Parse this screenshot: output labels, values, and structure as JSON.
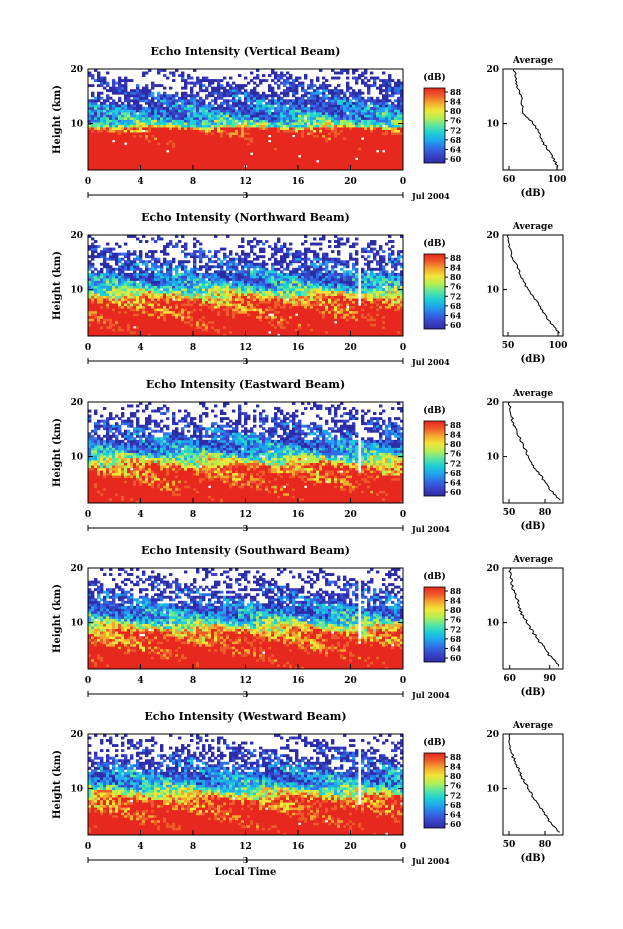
{
  "figure": {
    "bottom_label": "Local Time",
    "date_label": "Jul 2004",
    "day_marker": "3",
    "cbar_unit": "(dB)",
    "avg_title": "Average",
    "avg_xlabel": "(dB)"
  },
  "colorbar": {
    "ticks": [
      "60",
      "64",
      "68",
      "72",
      "76",
      "80",
      "84",
      "88"
    ],
    "colors": [
      "#2c2ca6",
      "#3a43c8",
      "#2f6ee6",
      "#1fa6ee",
      "#1fd0d4",
      "#5ce6a0",
      "#b6ee52",
      "#f2e63a",
      "#f4a92e",
      "#ee5a2a",
      "#e6281e"
    ]
  },
  "chart_data": [
    {
      "type": "heatmap",
      "title": "Echo Intensity (Vertical Beam)",
      "xlabel": "",
      "ylabel": "Height (km)",
      "x_ticks": [
        "0",
        "4",
        "8",
        "12",
        "16",
        "20",
        "0"
      ],
      "y_ticks": [
        "20",
        "10"
      ],
      "xlim": [
        0,
        24
      ],
      "ylim": [
        1.5,
        20
      ],
      "color_range": [
        60,
        88
      ],
      "profile": {
        "title": "Average",
        "xlabel": "(dB)",
        "x_ticks": [
          "60",
          "100"
        ],
        "y_ticks": [
          "20",
          "10"
        ],
        "xlim": [
          55,
          105
        ],
        "heights": [
          20,
          18,
          16,
          14,
          12,
          10,
          8,
          6,
          4,
          2
        ],
        "values": [
          64,
          66,
          68,
          71,
          72,
          80,
          86,
          90,
          96,
          101
        ]
      }
    },
    {
      "type": "heatmap",
      "title": "Echo Intensity (Northward Beam)",
      "xlabel": "",
      "ylabel": "Height (km)",
      "x_ticks": [
        "0",
        "4",
        "8",
        "12",
        "16",
        "20",
        "0"
      ],
      "y_ticks": [
        "20",
        "10"
      ],
      "xlim": [
        0,
        24
      ],
      "ylim": [
        1.5,
        20
      ],
      "color_range": [
        60,
        88
      ],
      "profile": {
        "title": "Average",
        "xlabel": "(dB)",
        "x_ticks": [
          "50",
          "100"
        ],
        "y_ticks": [
          "20",
          "10"
        ],
        "xlim": [
          45,
          105
        ],
        "heights": [
          20,
          18,
          16,
          14,
          12,
          10,
          8,
          6,
          4,
          2
        ],
        "values": [
          50,
          51,
          54,
          60,
          64,
          70,
          78,
          85,
          92,
          101
        ]
      }
    },
    {
      "type": "heatmap",
      "title": "Echo Intensity (Eastward Beam)",
      "xlabel": "",
      "ylabel": "Height (km)",
      "x_ticks": [
        "0",
        "4",
        "8",
        "12",
        "16",
        "20",
        "0"
      ],
      "y_ticks": [
        "20",
        "10"
      ],
      "xlim": [
        0,
        24
      ],
      "ylim": [
        1.5,
        20
      ],
      "color_range": [
        60,
        88
      ],
      "profile": {
        "title": "Average",
        "xlabel": "(dB)",
        "x_ticks": [
          "50",
          "80"
        ],
        "y_ticks": [
          "20",
          "10"
        ],
        "xlim": [
          45,
          95
        ],
        "heights": [
          20,
          18,
          16,
          14,
          12,
          10,
          8,
          6,
          4,
          2
        ],
        "values": [
          50,
          51,
          54,
          58,
          62,
          66,
          71,
          78,
          84,
          92
        ]
      }
    },
    {
      "type": "heatmap",
      "title": "Echo Intensity (Southward Beam)",
      "xlabel": "",
      "ylabel": "Height (km)",
      "x_ticks": [
        "0",
        "4",
        "8",
        "12",
        "16",
        "20",
        "0"
      ],
      "y_ticks": [
        "20",
        "10"
      ],
      "xlim": [
        0,
        24
      ],
      "ylim": [
        1.5,
        20
      ],
      "color_range": [
        60,
        88
      ],
      "profile": {
        "title": "Average",
        "xlabel": "(dB)",
        "x_ticks": [
          "60",
          "90"
        ],
        "y_ticks": [
          "20",
          "10"
        ],
        "xlim": [
          55,
          100
        ],
        "heights": [
          20,
          18,
          16,
          14,
          12,
          10,
          8,
          6,
          4,
          2
        ],
        "values": [
          60,
          61,
          63,
          66,
          68,
          73,
          78,
          84,
          90,
          97
        ]
      }
    },
    {
      "type": "heatmap",
      "title": "Echo Intensity (Westward Beam)",
      "xlabel": "Local Time",
      "ylabel": "Height (km)",
      "x_ticks": [
        "0",
        "4",
        "8",
        "12",
        "16",
        "20",
        "0"
      ],
      "y_ticks": [
        "20",
        "10"
      ],
      "xlim": [
        0,
        24
      ],
      "ylim": [
        1.5,
        20
      ],
      "color_range": [
        60,
        88
      ],
      "profile": {
        "title": "Average",
        "xlabel": "(dB)",
        "x_ticks": [
          "50",
          "80"
        ],
        "y_ticks": [
          "20",
          "10"
        ],
        "xlim": [
          45,
          95
        ],
        "heights": [
          20,
          18,
          16,
          14,
          12,
          10,
          8,
          6,
          4,
          2
        ],
        "values": [
          50,
          51,
          53,
          57,
          61,
          66,
          71,
          78,
          84,
          92
        ]
      }
    }
  ]
}
